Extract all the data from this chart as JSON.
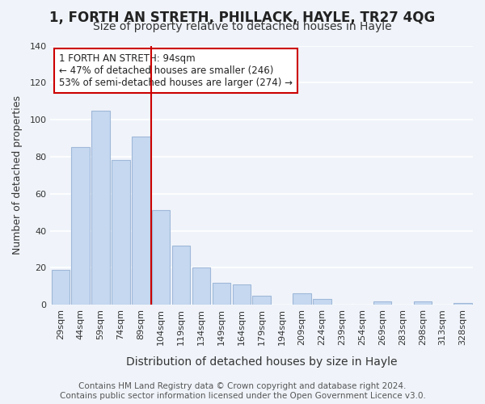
{
  "title": "1, FORTH AN STRETH, PHILLACK, HAYLE, TR27 4QG",
  "subtitle": "Size of property relative to detached houses in Hayle",
  "xlabel": "Distribution of detached houses by size in Hayle",
  "ylabel": "Number of detached properties",
  "categories": [
    "29sqm",
    "44sqm",
    "59sqm",
    "74sqm",
    "89sqm",
    "104sqm",
    "119sqm",
    "134sqm",
    "149sqm",
    "164sqm",
    "179sqm",
    "194sqm",
    "209sqm",
    "224sqm",
    "239sqm",
    "254sqm",
    "269sqm",
    "283sqm",
    "298sqm",
    "313sqm",
    "328sqm"
  ],
  "values": [
    19,
    85,
    105,
    78,
    91,
    51,
    32,
    20,
    12,
    11,
    5,
    0,
    6,
    3,
    0,
    0,
    2,
    0,
    2,
    0,
    1
  ],
  "bar_color": "#c5d8f0",
  "bar_edge_color": "#a0b8d8",
  "vline_x": 4.5,
  "vline_color": "#cc0000",
  "annotation_text": "1 FORTH AN STRETH: 94sqm\n← 47% of detached houses are smaller (246)\n53% of semi-detached houses are larger (274) →",
  "annotation_box_color": "#ffffff",
  "annotation_box_edgecolor": "#cc0000",
  "ylim": [
    0,
    140
  ],
  "yticks": [
    0,
    20,
    40,
    60,
    80,
    100,
    120,
    140
  ],
  "footer_text": "Contains HM Land Registry data © Crown copyright and database right 2024.\nContains public sector information licensed under the Open Government Licence v3.0.",
  "background_color": "#f0f4fa",
  "grid_color": "#ffffff",
  "title_fontsize": 12,
  "subtitle_fontsize": 10,
  "xlabel_fontsize": 10,
  "ylabel_fontsize": 9,
  "tick_fontsize": 8,
  "footer_fontsize": 7.5
}
